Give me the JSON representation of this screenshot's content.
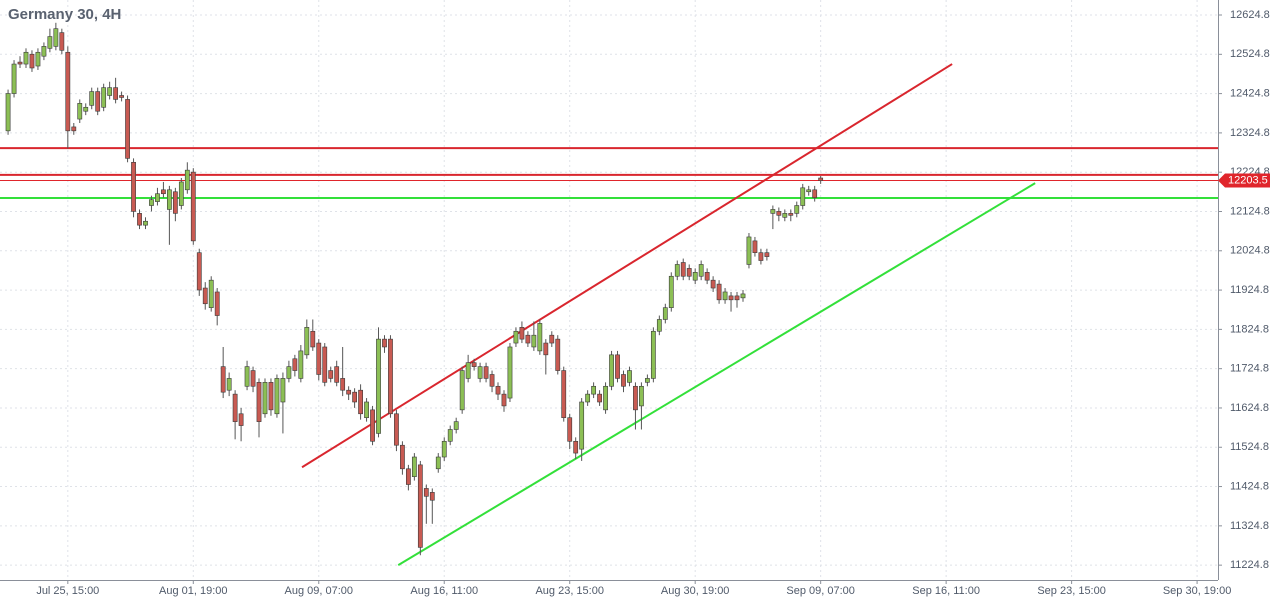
{
  "chart_data": {
    "type": "candlestick",
    "title": "Germany 30, 4H",
    "up_color": "#8cbf55",
    "down_color": "#c85a52",
    "wick_color": "#555555",
    "open": [
      12330,
      12425,
      12505,
      12500,
      12525,
      12495,
      12520,
      12540,
      12545,
      12580,
      12530,
      12340,
      12360,
      12380,
      12395,
      12430,
      12390,
      12420,
      12440,
      12420,
      12410,
      12250,
      12120,
      12090,
      12140,
      12150,
      12180,
      12130,
      12175,
      12140,
      12180,
      12225,
      12020,
      11930,
      11880,
      11920,
      11730,
      11670,
      11660,
      11610,
      11680,
      11720,
      11690,
      11610,
      11690,
      11610,
      11640,
      11700,
      11750,
      11700,
      11760,
      11820,
      11790,
      11780,
      11720,
      11730,
      11700,
      11670,
      11665,
      11670,
      11600,
      11620,
      11560,
      11800,
      11800,
      11610,
      11530,
      11470,
      11450,
      11480,
      11420,
      11410,
      11470,
      11500,
      11540,
      11570,
      11620,
      11700,
      11740,
      11700,
      11730,
      11710,
      11680,
      11660,
      11650,
      11790,
      11830,
      11810,
      11780,
      11770,
      11790,
      11810,
      11800,
      11720,
      11600,
      11540,
      11520,
      11640,
      11660,
      11660,
      11620,
      11680,
      11760,
      11710,
      11690,
      11680,
      11630,
      11690,
      11700,
      11820,
      11850,
      11880,
      11960,
      11995,
      11980,
      11950,
      11960,
      11970,
      11950,
      11940,
      11900,
      11910,
      11910,
      11905,
      11990,
      12050,
      12020,
      12020,
      12120,
      12125,
      12110,
      12120,
      12120,
      12140,
      12175,
      12180,
      12210
    ],
    "high": [
      12435,
      12510,
      12520,
      12540,
      12535,
      12540,
      12555,
      12590,
      12605,
      12590,
      12545,
      12350,
      12410,
      12400,
      12440,
      12440,
      12450,
      12455,
      12465,
      12430,
      12420,
      12260,
      12130,
      12110,
      12165,
      12185,
      12200,
      12190,
      12185,
      12210,
      12250,
      12235,
      12030,
      11945,
      11960,
      11930,
      11780,
      11715,
      11670,
      11625,
      11745,
      11730,
      11700,
      11700,
      11700,
      11710,
      11715,
      11745,
      11760,
      11785,
      11850,
      11850,
      11800,
      11790,
      11730,
      11745,
      11780,
      11680,
      11675,
      11685,
      11650,
      11630,
      11830,
      11810,
      11810,
      11620,
      11540,
      11480,
      11510,
      11490,
      11430,
      11420,
      11510,
      11550,
      11580,
      11600,
      11730,
      11760,
      11750,
      11740,
      11740,
      11720,
      11690,
      11670,
      11790,
      11830,
      11845,
      11820,
      11845,
      11850,
      11800,
      11820,
      11810,
      11730,
      11610,
      11550,
      11650,
      11670,
      11690,
      11670,
      11690,
      11770,
      11770,
      11720,
      11730,
      11690,
      11690,
      11710,
      11830,
      11860,
      11890,
      11970,
      12000,
      12005,
      11990,
      11980,
      12000,
      11980,
      11960,
      11950,
      11930,
      11920,
      11920,
      11925,
      12070,
      12060,
      12030,
      12030,
      12140,
      12135,
      12130,
      12130,
      12150,
      12195,
      12190,
      12190,
      12215
    ],
    "low": [
      12320,
      12415,
      12490,
      12490,
      12480,
      12485,
      12510,
      12530,
      12535,
      12525,
      12285,
      12320,
      12350,
      12370,
      12385,
      12370,
      12380,
      12410,
      12400,
      12405,
      12250,
      12110,
      12080,
      12080,
      12125,
      12140,
      12160,
      12040,
      12100,
      12130,
      12170,
      12040,
      11910,
      11875,
      11870,
      11835,
      11650,
      11655,
      11545,
      11540,
      11670,
      11665,
      11550,
      11600,
      11605,
      11600,
      11560,
      11690,
      11705,
      11690,
      11750,
      11770,
      11695,
      11680,
      11690,
      11680,
      11655,
      11645,
      11625,
      11595,
      11590,
      11530,
      11550,
      11765,
      11600,
      11515,
      11455,
      11415,
      11440,
      11250,
      11330,
      11330,
      11460,
      11490,
      11530,
      11560,
      11610,
      11690,
      11720,
      11690,
      11690,
      11665,
      11645,
      11615,
      11640,
      11780,
      11790,
      11780,
      11770,
      11760,
      11710,
      11780,
      11710,
      11590,
      11520,
      11495,
      11490,
      11630,
      11650,
      11630,
      11610,
      11670,
      11690,
      11665,
      11680,
      11570,
      11570,
      11680,
      11690,
      11810,
      11840,
      11870,
      11950,
      11950,
      11950,
      11940,
      11950,
      11940,
      11920,
      11890,
      11890,
      11870,
      11880,
      11895,
      11980,
      12010,
      11990,
      12000,
      12080,
      12100,
      12100,
      12100,
      12110,
      12130,
      12165,
      12150,
      12195
    ],
    "close": [
      12425,
      12500,
      12500,
      12530,
      12490,
      12530,
      12545,
      12570,
      12590,
      12535,
      12330,
      12330,
      12400,
      12390,
      12430,
      12380,
      12440,
      12440,
      12410,
      12415,
      12260,
      12125,
      12090,
      12100,
      12155,
      12170,
      12170,
      12180,
      12120,
      12200,
      12230,
      12050,
      11925,
      11890,
      11950,
      11860,
      11665,
      11700,
      11590,
      11580,
      11730,
      11680,
      11590,
      11690,
      11620,
      11700,
      11700,
      11730,
      11720,
      11770,
      11830,
      11780,
      11710,
      11690,
      11700,
      11690,
      11670,
      11660,
      11640,
      11610,
      11640,
      11540,
      11800,
      11780,
      11610,
      11530,
      11470,
      11430,
      11500,
      11270,
      11400,
      11390,
      11500,
      11540,
      11570,
      11590,
      11720,
      11740,
      11730,
      11730,
      11700,
      11680,
      11660,
      11630,
      11780,
      11820,
      11800,
      11790,
      11810,
      11840,
      11760,
      11790,
      11720,
      11600,
      11540,
      11510,
      11640,
      11660,
      11680,
      11640,
      11680,
      11760,
      11700,
      11680,
      11720,
      11620,
      11680,
      11700,
      11820,
      11850,
      11880,
      11960,
      11990,
      11960,
      11960,
      11970,
      11990,
      11950,
      11930,
      11900,
      11920,
      11900,
      11900,
      11915,
      12060,
      12020,
      12000,
      12010,
      12130,
      12115,
      12120,
      12115,
      12140,
      12185,
      12180,
      12160,
      12203.5
    ],
    "last_price": 12203.5,
    "last_price_color": "#e0252b",
    "ylim": [
      11187,
      12663
    ],
    "yticks": [
      12624.8,
      12524.8,
      12424.8,
      12324.8,
      12224.8,
      12124.8,
      12024.8,
      11924.8,
      11824.8,
      11724.8,
      11624.8,
      11524.8,
      11424.8,
      11324.8,
      11224.8
    ],
    "xlim": [
      -1.35,
      202.5
    ],
    "xticks": [
      {
        "value": 10,
        "label": "Jul 25, 15:00"
      },
      {
        "value": 31,
        "label": "Aug 01, 19:00"
      },
      {
        "value": 52,
        "label": "Aug 09, 07:00"
      },
      {
        "value": 73,
        "label": "Aug 16, 11:00"
      },
      {
        "value": 94,
        "label": "Aug 23, 15:00"
      },
      {
        "value": 115,
        "label": "Aug 30, 19:00"
      },
      {
        "value": 136,
        "label": "Sep 09, 07:00"
      },
      {
        "value": 157,
        "label": "Sep 16, 11:00"
      },
      {
        "value": 178,
        "label": "Sep 23, 15:00"
      },
      {
        "value": 199,
        "label": "Sep 30, 19:00"
      }
    ],
    "grid": true,
    "hlines": [
      {
        "value": 12286,
        "color": "#d9262e"
      },
      {
        "value": 12218,
        "color": "#d9262e"
      },
      {
        "value": 12159,
        "color": "#33e03a"
      }
    ],
    "trendlines": [
      {
        "x": [
          49.2,
          158
        ],
        "y": [
          11474,
          12500
        ],
        "color": "#d9262e"
      },
      {
        "x": [
          65.3,
          171.9
        ],
        "y": [
          11224.8,
          12197
        ],
        "color": "#33e03a"
      }
    ]
  }
}
